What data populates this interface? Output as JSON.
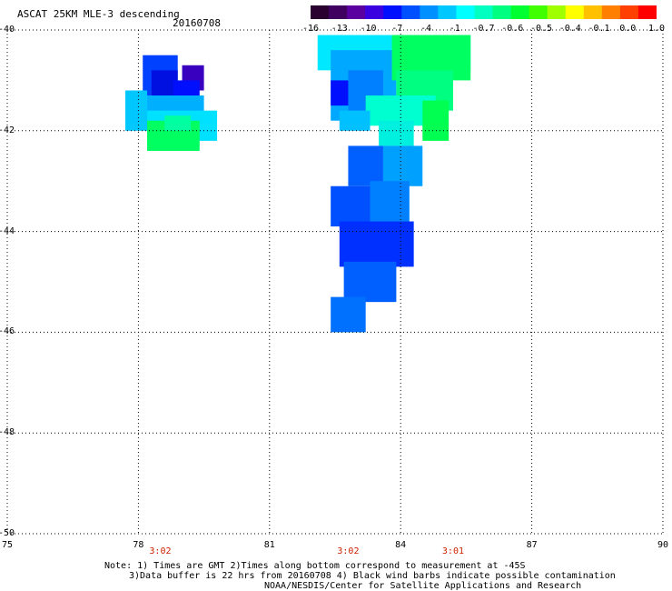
{
  "title": "ASCAT 25KM MLE-3 descending",
  "date": "20160708",
  "colorbar": {
    "colors": [
      "#2a0030",
      "#400060",
      "#5a00a0",
      "#3a00e0",
      "#0010ff",
      "#0050ff",
      "#0090ff",
      "#00c8ff",
      "#00ffff",
      "#00ffc0",
      "#00ff80",
      "#00ff30",
      "#40ff00",
      "#a0ff00",
      "#ffff00",
      "#ffc000",
      "#ff8000",
      "#ff4000",
      "#ff0000"
    ],
    "labels": [
      "-16",
      "-13",
      "-10",
      "-7",
      "-4",
      "-1",
      "-0.7",
      "-0.6",
      "-0.5",
      "-0.4",
      "-0.1",
      "0.0",
      "1.0"
    ]
  },
  "axes": {
    "x_ticks": [
      "75",
      "78",
      "81",
      "84",
      "87",
      "90"
    ],
    "y_ticks": [
      "-40",
      "-42",
      "-44",
      "-46",
      "-48",
      "-50"
    ],
    "x_range": [
      75,
      90
    ],
    "y_range": [
      -50,
      -40
    ],
    "grid": true
  },
  "times": [
    {
      "label": "3:02",
      "lon": 78.5
    },
    {
      "label": "3:02",
      "lon": 82.8
    },
    {
      "label": "3:01",
      "lon": 85.2
    }
  ],
  "note": {
    "line1": "Note: 1) Times are GMT 2)Times along bottom correspond to measurement at -45S",
    "line2": "3)Data buffer is 22 hrs from 20160708 4) Black wind barbs indicate possible contamination",
    "line3": "NOAA/NESDIS/Center for Satellite Applications and Research"
  },
  "swaths": [
    {
      "lon": 78.1,
      "lat": -40.5,
      "w": 0.8,
      "h": 0.8,
      "color": "#0040ff"
    },
    {
      "lon": 78.3,
      "lat": -40.8,
      "w": 0.6,
      "h": 0.6,
      "color": "#0010e0"
    },
    {
      "lon": 79.0,
      "lat": -40.7,
      "w": 0.5,
      "h": 0.5,
      "color": "#3a00c0"
    },
    {
      "lon": 78.8,
      "lat": -41.0,
      "w": 0.6,
      "h": 0.4,
      "color": "#0010ff"
    },
    {
      "lon": 77.7,
      "lat": -41.2,
      "w": 0.5,
      "h": 0.8,
      "color": "#00c8ff"
    },
    {
      "lon": 78.2,
      "lat": -41.3,
      "w": 1.3,
      "h": 0.5,
      "color": "#00b0ff"
    },
    {
      "lon": 78.2,
      "lat": -41.6,
      "w": 1.6,
      "h": 0.6,
      "color": "#00e0ff"
    },
    {
      "lon": 78.2,
      "lat": -41.8,
      "w": 1.2,
      "h": 0.6,
      "color": "#00ff60"
    },
    {
      "lon": 78.6,
      "lat": -41.7,
      "w": 0.6,
      "h": 0.3,
      "color": "#00ffa0"
    },
    {
      "lon": 82.1,
      "lat": -40.1,
      "w": 3.5,
      "h": 0.7,
      "color": "#00e8ff"
    },
    {
      "lon": 82.4,
      "lat": -40.4,
      "w": 1.5,
      "h": 1.4,
      "color": "#00a8ff"
    },
    {
      "lon": 82.8,
      "lat": -40.8,
      "w": 0.8,
      "h": 0.8,
      "color": "#0080ff"
    },
    {
      "lon": 82.4,
      "lat": -41.0,
      "w": 0.4,
      "h": 0.5,
      "color": "#0010ff"
    },
    {
      "lon": 83.8,
      "lat": -40.1,
      "w": 1.8,
      "h": 0.9,
      "color": "#00ff60"
    },
    {
      "lon": 83.9,
      "lat": -40.8,
      "w": 1.3,
      "h": 0.8,
      "color": "#00ff80"
    },
    {
      "lon": 83.2,
      "lat": -41.3,
      "w": 1.6,
      "h": 0.6,
      "color": "#00ffd0"
    },
    {
      "lon": 84.5,
      "lat": -41.4,
      "w": 0.6,
      "h": 0.8,
      "color": "#00ff50"
    },
    {
      "lon": 82.6,
      "lat": -41.6,
      "w": 0.7,
      "h": 0.4,
      "color": "#00c0ff"
    },
    {
      "lon": 83.5,
      "lat": -41.8,
      "w": 0.8,
      "h": 0.5,
      "color": "#00f0e0"
    },
    {
      "lon": 82.8,
      "lat": -42.3,
      "w": 0.8,
      "h": 0.8,
      "color": "#0060ff"
    },
    {
      "lon": 83.6,
      "lat": -42.3,
      "w": 0.9,
      "h": 0.8,
      "color": "#00a0ff"
    },
    {
      "lon": 82.4,
      "lat": -43.1,
      "w": 1.0,
      "h": 0.8,
      "color": "#0050ff"
    },
    {
      "lon": 83.3,
      "lat": -43.0,
      "w": 0.9,
      "h": 0.9,
      "color": "#0080ff"
    },
    {
      "lon": 82.6,
      "lat": -43.8,
      "w": 1.7,
      "h": 0.9,
      "color": "#0030ff"
    },
    {
      "lon": 82.7,
      "lat": -44.6,
      "w": 1.2,
      "h": 0.8,
      "color": "#0060ff"
    },
    {
      "lon": 82.4,
      "lat": -45.3,
      "w": 0.8,
      "h": 0.7,
      "color": "#0070ff"
    }
  ]
}
